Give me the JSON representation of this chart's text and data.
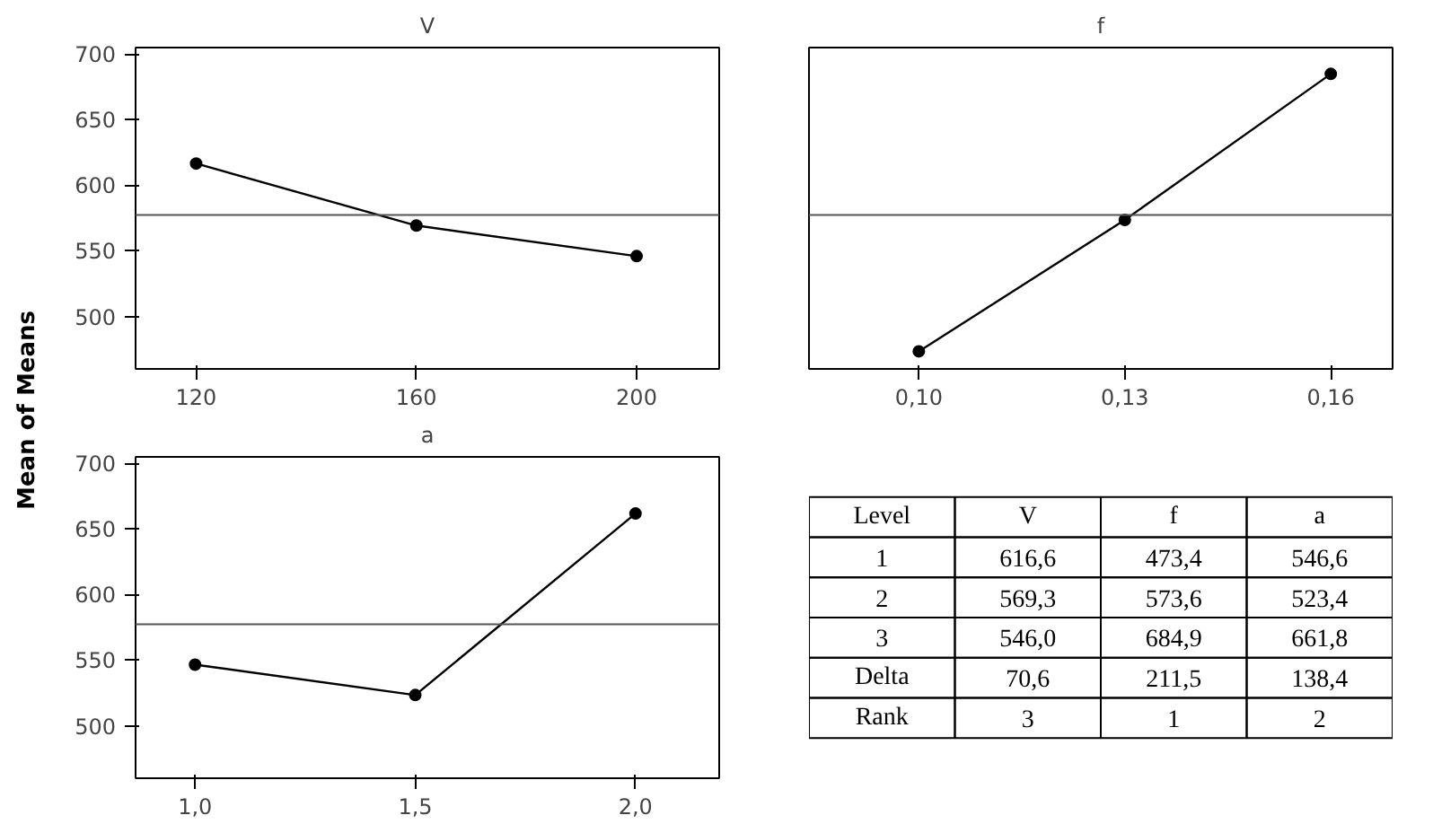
{
  "chart_data": [
    {
      "type": "line",
      "title": "V",
      "ylabel": "Mean of Means",
      "x": [
        120,
        160,
        200
      ],
      "series": [
        {
          "color": "#000000",
          "values": [
            616.6,
            569.3,
            546.0
          ]
        }
      ],
      "xlim": [
        109,
        215
      ],
      "xticks": [
        120,
        160,
        200
      ],
      "ylim": [
        460,
        705
      ],
      "yticks": [
        500,
        550,
        600,
        650,
        700
      ],
      "ref_lines": [
        {
          "axis": "y",
          "value": 577.3,
          "color": "#555555"
        }
      ],
      "marker": "circle",
      "line_style": "solid",
      "grid": false
    },
    {
      "type": "line",
      "title": "f",
      "x": [
        0.1,
        0.13,
        0.16
      ],
      "series": [
        {
          "color": "#000000",
          "values": [
            473.4,
            573.6,
            684.9
          ]
        }
      ],
      "xlim": [
        0.084,
        0.169
      ],
      "xticks": [
        {
          "value": 0.1,
          "label": "0,10"
        },
        {
          "value": 0.13,
          "label": "0,13"
        },
        {
          "value": 0.16,
          "label": "0,16"
        }
      ],
      "ylim": [
        460,
        705
      ],
      "yticks": [
        500,
        550,
        600,
        650,
        700
      ],
      "tick_labels": "x",
      "ref_lines": [
        {
          "axis": "y",
          "value": 577.3,
          "color": "#555555"
        }
      ],
      "marker": "circle",
      "line_style": "solid",
      "grid": false
    },
    {
      "type": "line",
      "title": "a",
      "x": [
        1.0,
        1.5,
        2.0
      ],
      "series": [
        {
          "color": "#000000",
          "values": [
            546.6,
            523.4,
            661.8
          ]
        }
      ],
      "xlim": [
        0.865,
        2.19
      ],
      "xticks": [
        {
          "value": 1.0,
          "label": "1,0"
        },
        {
          "value": 1.5,
          "label": "1,5"
        },
        {
          "value": 2.0,
          "label": "2,0"
        }
      ],
      "ylim": [
        460,
        705
      ],
      "yticks": [
        500,
        550,
        600,
        650,
        700
      ],
      "ref_lines": [
        {
          "axis": "y",
          "value": 577.3,
          "color": "#555555"
        }
      ],
      "marker": "circle",
      "line_style": "solid",
      "grid": false
    },
    {
      "type": "other",
      "annotations": [
        "Level",
        "V",
        "f",
        "a",
        "1",
        "616,6",
        "473,4",
        "546,6",
        "2",
        "569,3",
        "573,6",
        "523,4",
        "3",
        "546,0",
        "684,9",
        "661,8",
        "Delta",
        "70,6",
        "211,5",
        "138,4",
        "Rank",
        "3",
        "1",
        "2"
      ]
    }
  ]
}
